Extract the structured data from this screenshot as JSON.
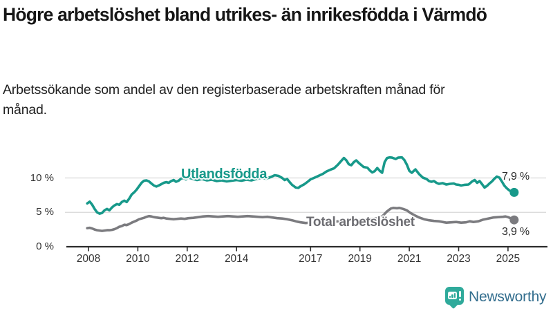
{
  "header": {
    "title": "Högre arbetslöshet bland utrikes- än inrikesfödda i Värmdö",
    "subtitle": "Arbetssökande som andel av den registerbaserade arbetskraften månad för månad."
  },
  "chart_data": {
    "type": "line",
    "unit": "%",
    "grid": "horizontal-only",
    "legend": "inline-labels-on-lines",
    "ylim": [
      0,
      14.8
    ],
    "x_range_years": [
      2007.0,
      2026.5
    ],
    "yticks": [
      {
        "v": 0,
        "label": "0 %"
      },
      {
        "v": 5,
        "label": "5 %"
      },
      {
        "v": 10,
        "label": "10 %"
      }
    ],
    "xticks": [
      {
        "v": 2008,
        "label": "2008"
      },
      {
        "v": 2010,
        "label": "2010"
      },
      {
        "v": 2012,
        "label": "2012"
      },
      {
        "v": 2014,
        "label": "2014"
      },
      {
        "v": 2017,
        "label": "2017"
      },
      {
        "v": 2019,
        "label": "2019"
      },
      {
        "v": 2021,
        "label": "2021"
      },
      {
        "v": 2023,
        "label": "2023"
      },
      {
        "v": 2025,
        "label": "2025"
      }
    ],
    "series": [
      {
        "name": "Utlandsfödda",
        "color": "#17998a",
        "end_label": "7,9 %",
        "end_value": 7.9,
        "points": [
          [
            2007.95,
            6.3
          ],
          [
            2008.05,
            6.55
          ],
          [
            2008.15,
            6.1
          ],
          [
            2008.25,
            5.5
          ],
          [
            2008.35,
            5.0
          ],
          [
            2008.45,
            4.8
          ],
          [
            2008.55,
            4.9
          ],
          [
            2008.65,
            5.3
          ],
          [
            2008.75,
            5.5
          ],
          [
            2008.85,
            5.3
          ],
          [
            2008.95,
            5.7
          ],
          [
            2009.05,
            6.0
          ],
          [
            2009.15,
            6.2
          ],
          [
            2009.25,
            6.1
          ],
          [
            2009.35,
            6.5
          ],
          [
            2009.45,
            6.7
          ],
          [
            2009.55,
            6.5
          ],
          [
            2009.65,
            7.0
          ],
          [
            2009.75,
            7.6
          ],
          [
            2009.85,
            7.9
          ],
          [
            2009.95,
            8.3
          ],
          [
            2010.05,
            8.8
          ],
          [
            2010.15,
            9.3
          ],
          [
            2010.25,
            9.6
          ],
          [
            2010.35,
            9.65
          ],
          [
            2010.45,
            9.5
          ],
          [
            2010.55,
            9.2
          ],
          [
            2010.65,
            8.9
          ],
          [
            2010.75,
            8.75
          ],
          [
            2010.85,
            8.9
          ],
          [
            2010.95,
            9.1
          ],
          [
            2011.05,
            9.3
          ],
          [
            2011.15,
            9.4
          ],
          [
            2011.25,
            9.3
          ],
          [
            2011.35,
            9.55
          ],
          [
            2011.45,
            9.7
          ],
          [
            2011.55,
            9.45
          ],
          [
            2011.65,
            9.6
          ],
          [
            2011.75,
            9.9
          ],
          [
            2011.85,
            10.0
          ],
          [
            2011.95,
            9.8
          ],
          [
            2012.05,
            10.05
          ],
          [
            2012.2,
            9.9
          ],
          [
            2012.4,
            9.7
          ],
          [
            2012.6,
            9.85
          ],
          [
            2012.8,
            9.65
          ],
          [
            2013.0,
            9.75
          ],
          [
            2013.2,
            9.55
          ],
          [
            2013.4,
            9.65
          ],
          [
            2013.6,
            9.5
          ],
          [
            2013.8,
            9.6
          ],
          [
            2014.0,
            9.7
          ],
          [
            2014.2,
            9.6
          ],
          [
            2014.4,
            9.75
          ],
          [
            2014.6,
            9.65
          ],
          [
            2014.8,
            9.85
          ],
          [
            2015.0,
            10.0
          ],
          [
            2015.2,
            9.9
          ],
          [
            2015.4,
            10.15
          ],
          [
            2015.55,
            10.4
          ],
          [
            2015.7,
            10.3
          ],
          [
            2015.85,
            10.0
          ],
          [
            2015.95,
            9.7
          ],
          [
            2016.05,
            9.85
          ],
          [
            2016.15,
            9.4
          ],
          [
            2016.25,
            9.0
          ],
          [
            2016.4,
            8.6
          ],
          [
            2016.5,
            8.55
          ],
          [
            2016.6,
            8.8
          ],
          [
            2016.75,
            9.1
          ],
          [
            2016.9,
            9.5
          ],
          [
            2017.0,
            9.8
          ],
          [
            2017.1,
            9.95
          ],
          [
            2017.2,
            10.1
          ],
          [
            2017.35,
            10.35
          ],
          [
            2017.5,
            10.6
          ],
          [
            2017.65,
            10.95
          ],
          [
            2017.8,
            11.2
          ],
          [
            2017.95,
            11.4
          ],
          [
            2018.1,
            11.9
          ],
          [
            2018.25,
            12.5
          ],
          [
            2018.35,
            12.9
          ],
          [
            2018.45,
            12.55
          ],
          [
            2018.55,
            12.0
          ],
          [
            2018.65,
            11.85
          ],
          [
            2018.75,
            12.3
          ],
          [
            2018.85,
            12.55
          ],
          [
            2018.95,
            12.2
          ],
          [
            2019.05,
            11.9
          ],
          [
            2019.15,
            11.6
          ],
          [
            2019.3,
            11.5
          ],
          [
            2019.4,
            11.1
          ],
          [
            2019.5,
            10.8
          ],
          [
            2019.6,
            11.0
          ],
          [
            2019.7,
            11.45
          ],
          [
            2019.8,
            11.05
          ],
          [
            2019.9,
            10.75
          ],
          [
            2020.0,
            12.3
          ],
          [
            2020.1,
            12.9
          ],
          [
            2020.2,
            13.0
          ],
          [
            2020.3,
            12.95
          ],
          [
            2020.45,
            12.75
          ],
          [
            2020.55,
            12.95
          ],
          [
            2020.7,
            13.0
          ],
          [
            2020.8,
            12.6
          ],
          [
            2020.9,
            11.95
          ],
          [
            2021.0,
            11.05
          ],
          [
            2021.1,
            10.75
          ],
          [
            2021.25,
            11.25
          ],
          [
            2021.4,
            10.55
          ],
          [
            2021.55,
            10.05
          ],
          [
            2021.7,
            9.85
          ],
          [
            2021.8,
            9.55
          ],
          [
            2021.9,
            9.45
          ],
          [
            2022.0,
            9.55
          ],
          [
            2022.1,
            9.3
          ],
          [
            2022.2,
            9.15
          ],
          [
            2022.35,
            9.25
          ],
          [
            2022.5,
            9.05
          ],
          [
            2022.65,
            9.15
          ],
          [
            2022.8,
            9.2
          ],
          [
            2022.9,
            9.05
          ],
          [
            2023.0,
            9.0
          ],
          [
            2023.1,
            8.9
          ],
          [
            2023.25,
            9.0
          ],
          [
            2023.4,
            9.05
          ],
          [
            2023.55,
            9.5
          ],
          [
            2023.65,
            9.7
          ],
          [
            2023.75,
            9.3
          ],
          [
            2023.85,
            9.55
          ],
          [
            2023.95,
            9.1
          ],
          [
            2024.05,
            8.6
          ],
          [
            2024.15,
            8.85
          ],
          [
            2024.25,
            9.2
          ],
          [
            2024.35,
            9.5
          ],
          [
            2024.45,
            9.9
          ],
          [
            2024.55,
            10.2
          ],
          [
            2024.65,
            10.05
          ],
          [
            2024.75,
            9.5
          ],
          [
            2024.85,
            8.9
          ],
          [
            2024.95,
            8.5
          ],
          [
            2025.05,
            8.2
          ],
          [
            2025.15,
            8.0
          ],
          [
            2025.25,
            7.9
          ]
        ]
      },
      {
        "name": "Total arbetslöshet",
        "color": "#7b7b7f",
        "end_label": "3,9 %",
        "end_value": 3.9,
        "points": [
          [
            2007.95,
            2.7
          ],
          [
            2008.05,
            2.75
          ],
          [
            2008.15,
            2.65
          ],
          [
            2008.25,
            2.5
          ],
          [
            2008.35,
            2.4
          ],
          [
            2008.45,
            2.35
          ],
          [
            2008.55,
            2.3
          ],
          [
            2008.65,
            2.35
          ],
          [
            2008.75,
            2.4
          ],
          [
            2008.85,
            2.4
          ],
          [
            2008.95,
            2.45
          ],
          [
            2009.05,
            2.55
          ],
          [
            2009.15,
            2.7
          ],
          [
            2009.25,
            2.9
          ],
          [
            2009.35,
            3.0
          ],
          [
            2009.45,
            3.2
          ],
          [
            2009.55,
            3.15
          ],
          [
            2009.65,
            3.3
          ],
          [
            2009.75,
            3.5
          ],
          [
            2009.85,
            3.65
          ],
          [
            2009.95,
            3.8
          ],
          [
            2010.05,
            4.0
          ],
          [
            2010.15,
            4.1
          ],
          [
            2010.25,
            4.2
          ],
          [
            2010.35,
            4.35
          ],
          [
            2010.45,
            4.45
          ],
          [
            2010.55,
            4.4
          ],
          [
            2010.65,
            4.3
          ],
          [
            2010.75,
            4.25
          ],
          [
            2010.85,
            4.2
          ],
          [
            2010.95,
            4.15
          ],
          [
            2011.05,
            4.2
          ],
          [
            2011.15,
            4.1
          ],
          [
            2011.3,
            4.05
          ],
          [
            2011.45,
            4.0
          ],
          [
            2011.6,
            4.05
          ],
          [
            2011.75,
            4.1
          ],
          [
            2011.9,
            4.05
          ],
          [
            2012.05,
            4.15
          ],
          [
            2012.25,
            4.2
          ],
          [
            2012.45,
            4.3
          ],
          [
            2012.65,
            4.4
          ],
          [
            2012.85,
            4.45
          ],
          [
            2013.05,
            4.4
          ],
          [
            2013.25,
            4.35
          ],
          [
            2013.45,
            4.4
          ],
          [
            2013.65,
            4.45
          ],
          [
            2013.85,
            4.4
          ],
          [
            2014.05,
            4.35
          ],
          [
            2014.25,
            4.4
          ],
          [
            2014.45,
            4.45
          ],
          [
            2014.65,
            4.4
          ],
          [
            2014.85,
            4.35
          ],
          [
            2015.05,
            4.3
          ],
          [
            2015.25,
            4.35
          ],
          [
            2015.45,
            4.25
          ],
          [
            2015.65,
            4.15
          ],
          [
            2015.85,
            4.1
          ],
          [
            2016.05,
            4.0
          ],
          [
            2016.25,
            3.85
          ],
          [
            2016.45,
            3.65
          ],
          [
            2016.6,
            3.55
          ],
          [
            2016.8,
            3.45
          ],
          [
            2017.0,
            3.5
          ],
          [
            2017.3,
            3.55
          ],
          [
            2017.6,
            3.6
          ],
          [
            2017.9,
            3.65
          ],
          [
            2018.2,
            3.7
          ],
          [
            2018.5,
            3.75
          ],
          [
            2018.8,
            3.8
          ],
          [
            2019.1,
            3.9
          ],
          [
            2019.4,
            4.0
          ],
          [
            2019.7,
            4.15
          ],
          [
            2019.9,
            4.4
          ],
          [
            2020.1,
            5.15
          ],
          [
            2020.25,
            5.55
          ],
          [
            2020.35,
            5.65
          ],
          [
            2020.5,
            5.6
          ],
          [
            2020.6,
            5.65
          ],
          [
            2020.75,
            5.5
          ],
          [
            2020.9,
            5.3
          ],
          [
            2021.05,
            4.9
          ],
          [
            2021.2,
            4.6
          ],
          [
            2021.4,
            4.25
          ],
          [
            2021.6,
            4.0
          ],
          [
            2021.8,
            3.85
          ],
          [
            2022.0,
            3.75
          ],
          [
            2022.2,
            3.7
          ],
          [
            2022.35,
            3.6
          ],
          [
            2022.5,
            3.5
          ],
          [
            2022.7,
            3.55
          ],
          [
            2022.9,
            3.6
          ],
          [
            2023.1,
            3.5
          ],
          [
            2023.3,
            3.55
          ],
          [
            2023.45,
            3.7
          ],
          [
            2023.6,
            3.6
          ],
          [
            2023.8,
            3.7
          ],
          [
            2024.0,
            3.95
          ],
          [
            2024.2,
            4.1
          ],
          [
            2024.4,
            4.25
          ],
          [
            2024.6,
            4.3
          ],
          [
            2024.8,
            4.35
          ],
          [
            2024.9,
            4.4
          ],
          [
            2025.0,
            4.3
          ],
          [
            2025.1,
            4.15
          ],
          [
            2025.2,
            4.0
          ],
          [
            2025.25,
            3.9
          ]
        ]
      }
    ]
  },
  "branding": {
    "name": "Newsworthy",
    "icon": "newsworthy-bars-speech-bubble-icon",
    "text_color": "#336e8e",
    "icon_color": "#2faa9b"
  }
}
